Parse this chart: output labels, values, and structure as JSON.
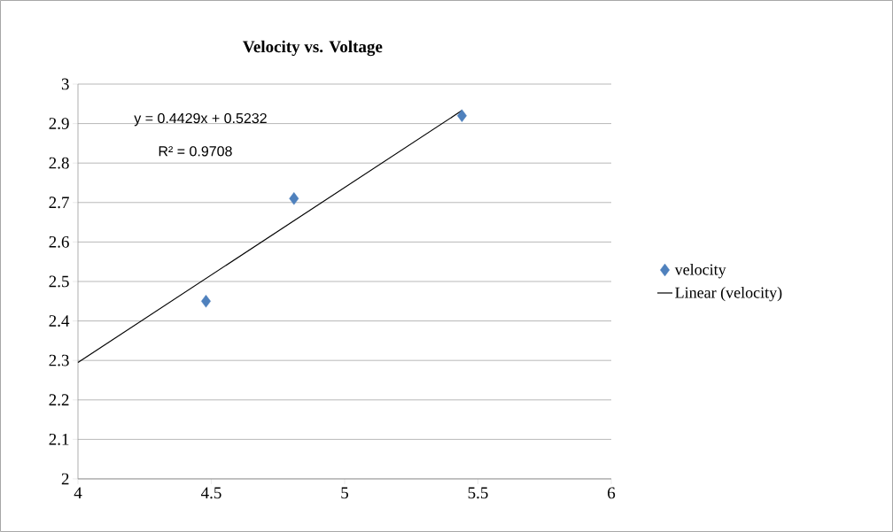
{
  "chart_data": {
    "type": "scatter",
    "title": "Velocity vs. Voltage",
    "series": [
      {
        "name": "velocity",
        "color": "#4f81bd",
        "marker": "diamond",
        "x": [
          4.48,
          4.81,
          5.44
        ],
        "values": [
          2.45,
          2.71,
          2.92
        ]
      },
      {
        "name": "Linear (velocity)",
        "type": "line",
        "marker": "none",
        "color": "#000000",
        "x": [
          4,
          5.44
        ],
        "values": [
          2.295,
          2.933
        ]
      }
    ],
    "annotations": [
      "y = 0.4429x + 0.5232",
      "R² = 0.9708"
    ],
    "xlim": [
      4,
      6
    ],
    "ylim": [
      2,
      3
    ],
    "xticks": [
      4,
      4.5,
      5,
      5.5,
      6
    ],
    "yticks": [
      2,
      2.1,
      2.2,
      2.3,
      2.4,
      2.5,
      2.6,
      2.7,
      2.8,
      2.9,
      3
    ],
    "grid": "y",
    "legend": "right"
  }
}
